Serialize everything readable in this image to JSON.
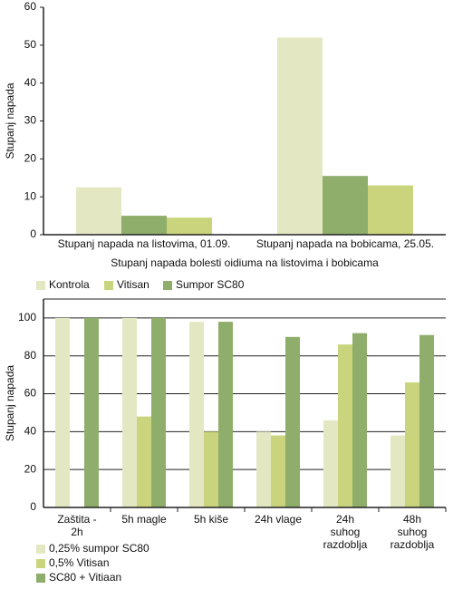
{
  "chart_data": [
    {
      "type": "bar",
      "y_label": "Stupanj napada",
      "x_label": "Stupanj napada bolesti oidiuma na listovima i bobicama",
      "categories": [
        "Stupanj napada na listovima, 01.09.",
        "Stupanj napada na bobicama, 25.05."
      ],
      "series": [
        {
          "name": "Kontrola",
          "color": "#e3e8c2",
          "values": [
            12.5,
            52
          ]
        },
        {
          "name": "Vitisan",
          "color": "#c9d47c",
          "values": [
            4.5,
            13
          ]
        },
        {
          "name": "Sumpor SC80",
          "color": "#8fae6b",
          "values": [
            5,
            15.5
          ]
        }
      ],
      "ylim": [
        0,
        60
      ],
      "yticks": [
        0,
        10,
        20,
        30,
        40,
        50,
        60
      ],
      "grid": false
    },
    {
      "type": "bar",
      "y_label": "Stupanj napada",
      "categories": [
        "Zaštita - 2h",
        "5h magle",
        "5h kiše",
        "24h vlage",
        "24h suhog razdoblja",
        "48h suhog razdoblja"
      ],
      "series": [
        {
          "name": "0,25% sumpor SC80",
          "color": "#e3e8c2",
          "values": [
            100,
            100,
            98,
            40,
            46,
            38
          ]
        },
        {
          "name": "0,5%  Vitisan",
          "color": "#c9d47c",
          "values": [
            null,
            48,
            40,
            38,
            86,
            66
          ]
        },
        {
          "name": "SC80 + Vitiaan",
          "color": "#8fae6b",
          "values": [
            100,
            100,
            98,
            90,
            92,
            91
          ]
        }
      ],
      "ylim": [
        0,
        110
      ],
      "yticks": [
        0,
        20,
        40,
        60,
        80,
        100
      ],
      "grid": true
    }
  ]
}
